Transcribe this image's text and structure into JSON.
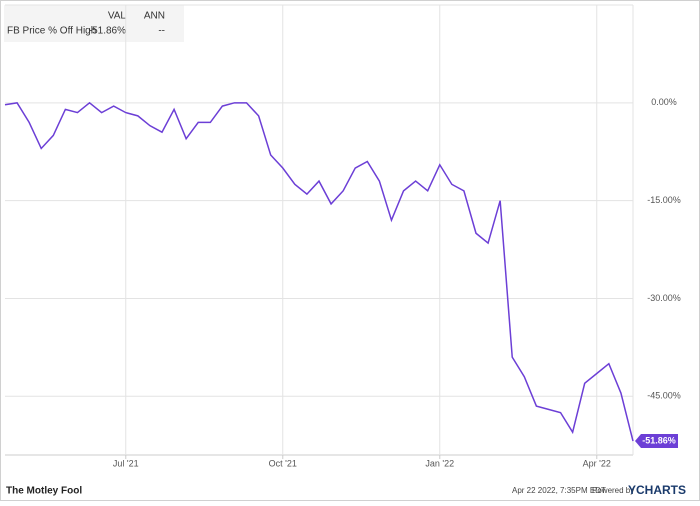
{
  "chart_data": {
    "type": "line",
    "categories": [
      null,
      null,
      null,
      null,
      null,
      null,
      null,
      null,
      null,
      null,
      "Jul '21",
      null,
      null,
      null,
      null,
      null,
      null,
      null,
      null,
      null,
      null,
      null,
      null,
      "Oct '21",
      null,
      null,
      null,
      null,
      null,
      null,
      null,
      null,
      null,
      null,
      null,
      null,
      "Jan '22",
      null,
      null,
      null,
      null,
      null,
      null,
      null,
      null,
      null,
      null,
      null,
      null,
      "Apr '22",
      null,
      null,
      null
    ],
    "series": [
      {
        "name": "FB Price % Off High",
        "color": "#6c3fd6",
        "values": [
          -0.3,
          0,
          -3,
          -7,
          -5,
          -1,
          -1.5,
          0,
          -1.5,
          -0.5,
          -1.5,
          -2,
          -3.5,
          -4.5,
          -1,
          -5.5,
          -3,
          -3,
          -0.5,
          0,
          0,
          -2,
          -8,
          -10,
          -12.5,
          -14,
          -12,
          -15.5,
          -13.5,
          -10,
          -9,
          -12,
          -18,
          -13.5,
          -12,
          -13.5,
          -9.5,
          -12.5,
          -13.5,
          -20,
          -21.5,
          -15,
          -39,
          -42,
          -46.5,
          -47,
          -47.5,
          -50.5,
          -43,
          -41.5,
          -40,
          -44.5,
          -51.86
        ],
        "value_labels": [
          null,
          null,
          null,
          null,
          null,
          null,
          null,
          null,
          null,
          null,
          null,
          null,
          null,
          null,
          null,
          null,
          null,
          null,
          null,
          null,
          null,
          null,
          null,
          null,
          null,
          null,
          null,
          null,
          null,
          null,
          null,
          null,
          null,
          null,
          null,
          null,
          null,
          null,
          null,
          null,
          null,
          null,
          null,
          null,
          null,
          null,
          null,
          null,
          null,
          null,
          null,
          null,
          "-51.86%"
        ]
      }
    ],
    "ylim": [
      -54,
      15
    ],
    "yticks": [
      {
        "value": 0,
        "label": "0.00%"
      },
      {
        "value": -15,
        "label": "-15.00%"
      },
      {
        "value": -30,
        "label": "-30.00%"
      },
      {
        "value": -45,
        "label": "-45.00%"
      }
    ],
    "grid": true,
    "legend": {
      "headers": [
        "VAL",
        "ANN"
      ],
      "val": "-51.86%",
      "ann": "--"
    }
  },
  "footer": {
    "logo": "The Motley Fool",
    "timestamp": "Apr 22 2022, 7:35PM EDT.",
    "powered": "Powered by",
    "brand": "YCHARTS"
  }
}
